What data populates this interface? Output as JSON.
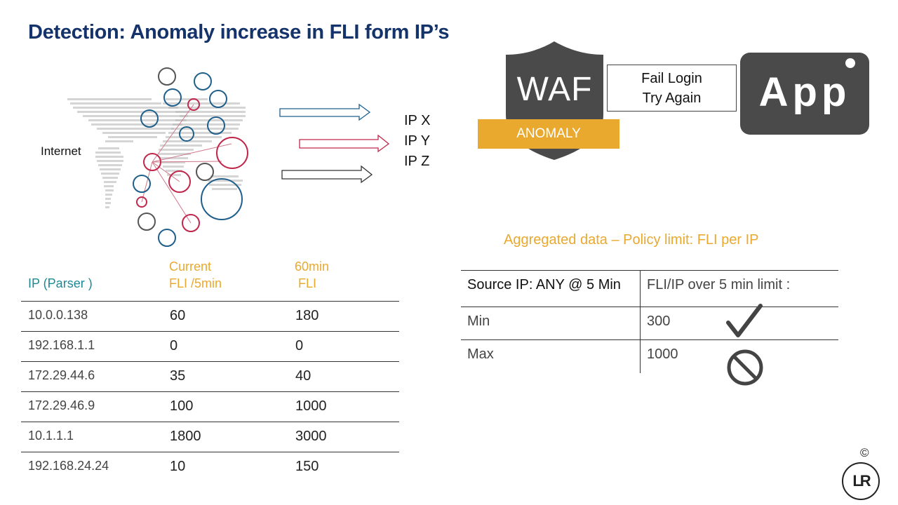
{
  "title": "Detection: Anomaly increase in FLI form IP’s",
  "map": {
    "label": "Internet"
  },
  "ip_labels": [
    "IP X",
    "IP Y",
    "IP Z"
  ],
  "waf": {
    "label": "WAF",
    "status": "ANOMALY"
  },
  "fail_box": {
    "line1": "Fail Login",
    "line2": "Try Again"
  },
  "app": {
    "label": "App"
  },
  "policy": {
    "title": "Aggregated data – Policy limit: FLI  per IP",
    "header": {
      "col1": "Source IP: ANY @ 5 Min",
      "col2": "FLI/IP over 5 min limit :"
    },
    "rows": [
      {
        "label": "Min",
        "value": "300",
        "icon": "check-icon"
      },
      {
        "label": "Max",
        "value": "1000",
        "icon": "prohibited-icon"
      }
    ]
  },
  "ip_table": {
    "headers": {
      "ip": "IP (Parser )",
      "current_1": "Current",
      "current_2": "FLI /5min",
      "sixty_1": "60min",
      "sixty_2": " FLI"
    },
    "rows": [
      {
        "ip": "10.0.0.138",
        "current": "60",
        "sixty": "180"
      },
      {
        "ip": "192.168.1.1",
        "current": "0",
        "sixty": "0"
      },
      {
        "ip": "172.29.44.6",
        "current": "35",
        "sixty": "40"
      },
      {
        "ip": "172.29.46.9",
        "current": "100",
        "sixty": "1000"
      },
      {
        "ip": "10.1.1.1",
        "current": "1800",
        "sixty": "3000"
      },
      {
        "ip": "192.168.24.24",
        "current": "10",
        "sixty": "150"
      }
    ]
  },
  "colors": {
    "title": "#15336b",
    "accent_orange": "#e9a92f",
    "accent_teal": "#1b8a96",
    "app_gray": "#4a4a4a",
    "blue": "#1f5f8b",
    "red": "#c0284b"
  },
  "footer": {
    "copyright": "©",
    "logo_text": "LR"
  }
}
